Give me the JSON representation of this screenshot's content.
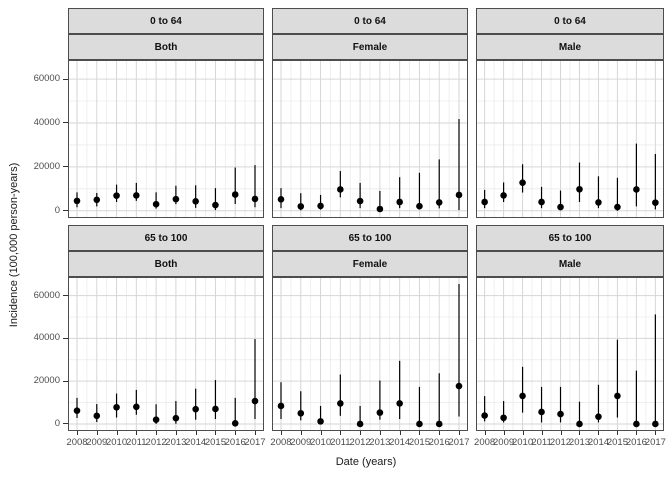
{
  "chart_data": {
    "type": "pointrange",
    "title": "",
    "xlabel": "Date (years)",
    "ylabel": "Incidence (100,000 person-years)",
    "x": [
      2008,
      2009,
      2010,
      2011,
      2012,
      2013,
      2014,
      2015,
      2016,
      2017
    ],
    "yticks": [
      0,
      20000,
      40000,
      60000
    ],
    "yminor": [
      10000,
      30000,
      50000
    ],
    "ylim": [
      -3300,
      68700
    ],
    "grid": "major-and-minor",
    "legend": "none",
    "facet_rows": [
      "0 to 64",
      "65 to 100"
    ],
    "facet_cols": [
      "Both",
      "Female",
      "Male"
    ],
    "panels": [
      {
        "row": "0 to 64",
        "col": "Both",
        "est": [
          4500,
          5000,
          6900,
          7000,
          3000,
          5300,
          4300,
          2600,
          7400,
          5400
        ],
        "lower": [
          1600,
          2000,
          4000,
          4500,
          1000,
          3000,
          1300,
          300,
          3100,
          1600
        ],
        "upper": [
          8400,
          8100,
          11900,
          12700,
          8400,
          11400,
          11600,
          10300,
          19700,
          20800
        ]
      },
      {
        "row": "0 to 64",
        "col": "Female",
        "est": [
          5200,
          2000,
          2200,
          9700,
          4400,
          800,
          4000,
          2100,
          3800,
          7200
        ],
        "lower": [
          1200,
          200,
          500,
          6100,
          1200,
          0,
          1200,
          600,
          1100,
          300
        ],
        "upper": [
          10300,
          8000,
          7200,
          18100,
          12700,
          9000,
          15300,
          17300,
          23400,
          41800
        ]
      },
      {
        "row": "0 to 64",
        "col": "Male",
        "est": [
          4000,
          7000,
          12800,
          4000,
          1700,
          9800,
          3800,
          1700,
          9700,
          3700
        ],
        "lower": [
          1200,
          4000,
          8300,
          1200,
          200,
          4000,
          1200,
          0,
          2000,
          600
        ],
        "upper": [
          9500,
          12900,
          21200,
          10900,
          9200,
          22000,
          15700,
          15000,
          30600,
          25900
        ]
      },
      {
        "row": "65 to 100",
        "col": "Both",
        "est": [
          6200,
          3800,
          7800,
          8000,
          2000,
          2700,
          6900,
          7000,
          300,
          10700
        ],
        "lower": [
          2800,
          900,
          3000,
          4300,
          0,
          100,
          2000,
          2300,
          0,
          2300
        ],
        "upper": [
          12200,
          9300,
          14200,
          15900,
          9200,
          10700,
          16500,
          20500,
          12200,
          39700
        ]
      },
      {
        "row": "65 to 100",
        "col": "Female",
        "est": [
          8400,
          5000,
          1200,
          9600,
          0,
          5300,
          9600,
          0,
          0,
          17700
        ],
        "lower": [
          2300,
          1700,
          0,
          3800,
          0,
          2000,
          2300,
          0,
          0,
          3500
        ],
        "upper": [
          19500,
          15300,
          8400,
          23100,
          8400,
          20300,
          29500,
          17300,
          23700,
          65400
        ]
      },
      {
        "row": "65 to 100",
        "col": "Male",
        "est": [
          3900,
          2900,
          13100,
          5600,
          4600,
          0,
          3400,
          13100,
          0,
          0
        ],
        "lower": [
          1200,
          700,
          5300,
          700,
          700,
          0,
          700,
          3000,
          0,
          0
        ],
        "upper": [
          13000,
          10700,
          26700,
          17300,
          17300,
          10400,
          18300,
          39400,
          24900,
          51200
        ]
      }
    ],
    "colors": {
      "point": "#000000",
      "panel_bg": "#FFFFFF",
      "grid_major": "#D6D6D6",
      "grid_minor": "#EBEBEB",
      "strip_fill": "#DCDCDC",
      "border": "#4D4D4D",
      "tick_text": "#4D4D4D",
      "title_text": "#1A1A1A"
    }
  }
}
